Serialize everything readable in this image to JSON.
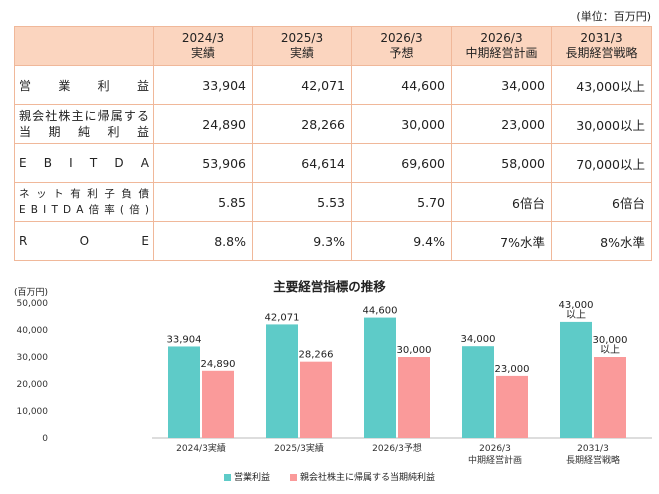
{
  "unit_note": "(単位：百万円)",
  "table": {
    "headers": [
      {
        "line1": "2024/3",
        "line2": "実績"
      },
      {
        "line1": "2025/3",
        "line2": "実績"
      },
      {
        "line1": "2026/3",
        "line2": "予想"
      },
      {
        "line1": "2026/3",
        "line2": "中期経営計画"
      },
      {
        "line1": "2031/3",
        "line2": "長期経営戦略"
      }
    ],
    "rows": [
      {
        "label": [
          "営",
          "業",
          "利",
          "益"
        ],
        "values": [
          "33,904",
          "42,071",
          "44,600",
          "34,000",
          "43,000以上"
        ]
      },
      {
        "label_lines": [
          [
            "親",
            "会",
            "社",
            "株",
            "主",
            "に",
            "帰",
            "属",
            "す",
            "る"
          ],
          [
            "当",
            "期",
            "純",
            "利",
            "益"
          ]
        ],
        "values": [
          "24,890",
          "28,266",
          "30,000",
          "23,000",
          "30,000以上"
        ]
      },
      {
        "label": [
          "E",
          "B",
          "I",
          "T",
          "D",
          "A"
        ],
        "values": [
          "53,906",
          "64,614",
          "69,600",
          "58,000",
          "70,000以上"
        ]
      },
      {
        "label_lines": [
          [
            "ネ",
            "ッ",
            "ト",
            "有",
            "利",
            "子",
            "負",
            "債"
          ],
          [
            "E",
            "B",
            "I",
            "T",
            "D",
            "A",
            "倍",
            "率",
            "(",
            "倍",
            ")"
          ]
        ],
        "values": [
          "5.85",
          "5.53",
          "5.70",
          "6倍台",
          "6倍台"
        ]
      },
      {
        "label": [
          "R",
          "O",
          "E"
        ],
        "values": [
          "8.8%",
          "9.3%",
          "9.4%",
          "7%水準",
          "8%水準"
        ]
      }
    ]
  },
  "chart_data": {
    "type": "bar",
    "title": "主要経営指標の推移",
    "ylabel": "(百万円)",
    "ylim": [
      0,
      50000
    ],
    "yticks": [
      "0",
      "10,000",
      "20,000",
      "30,000",
      "40,000",
      "50,000"
    ],
    "categories": [
      [
        "2024/3実績"
      ],
      [
        "2025/3実績"
      ],
      [
        "2026/3予想"
      ],
      [
        "2026/3",
        "中期経営計画"
      ],
      [
        "2031/3",
        "長期経営戦略"
      ]
    ],
    "series": [
      {
        "name": "営業利益",
        "color": "#5ecbc8",
        "values": [
          33904,
          42071,
          44600,
          34000,
          43000
        ],
        "labels": [
          [
            "33,904"
          ],
          [
            "42,071"
          ],
          [
            "44,600"
          ],
          [
            "34,000"
          ],
          [
            "43,000",
            "以上"
          ]
        ]
      },
      {
        "name": "親会社株主に帰属する当期純利益",
        "color": "#fa9a9a",
        "values": [
          24890,
          28266,
          30000,
          23000,
          30000
        ],
        "labels": [
          [
            "24,890"
          ],
          [
            "28,266"
          ],
          [
            "30,000"
          ],
          [
            "23,000"
          ],
          [
            "30,000",
            "以上"
          ]
        ]
      }
    ],
    "grid": false,
    "legend": "bottom"
  }
}
